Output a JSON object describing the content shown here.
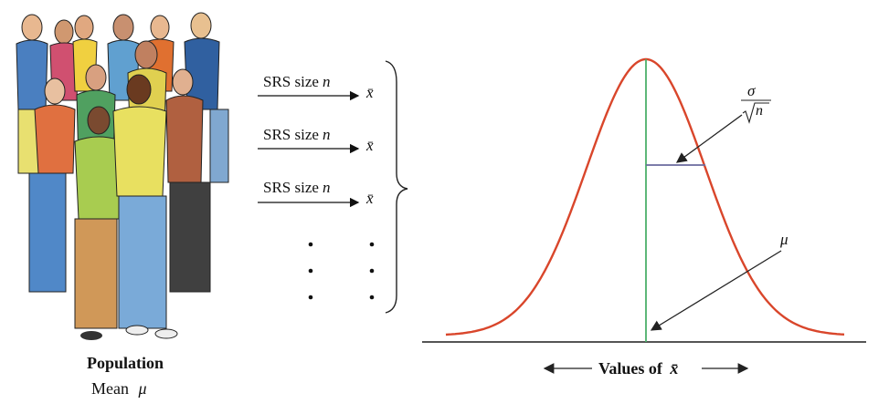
{
  "population": {
    "title": "Population",
    "mean_label": "Mean",
    "mean_symbol": "μ"
  },
  "samples": [
    {
      "label_text": "SRS size",
      "label_var": "n",
      "result": "x̄"
    },
    {
      "label_text": "SRS size",
      "label_var": "n",
      "result": "x̄"
    },
    {
      "label_text": "SRS size",
      "label_var": "n",
      "result": "x̄"
    }
  ],
  "curve": {
    "sd_numerator": "σ",
    "sd_denominator": "n",
    "mean_symbol": "μ",
    "axis_label": "Values of",
    "axis_symbol": "x̄",
    "colors": {
      "curve": "#d9462b",
      "mean_line": "#4caf6a",
      "sd_line": "#6a6a9e",
      "axis": "#555555"
    }
  }
}
